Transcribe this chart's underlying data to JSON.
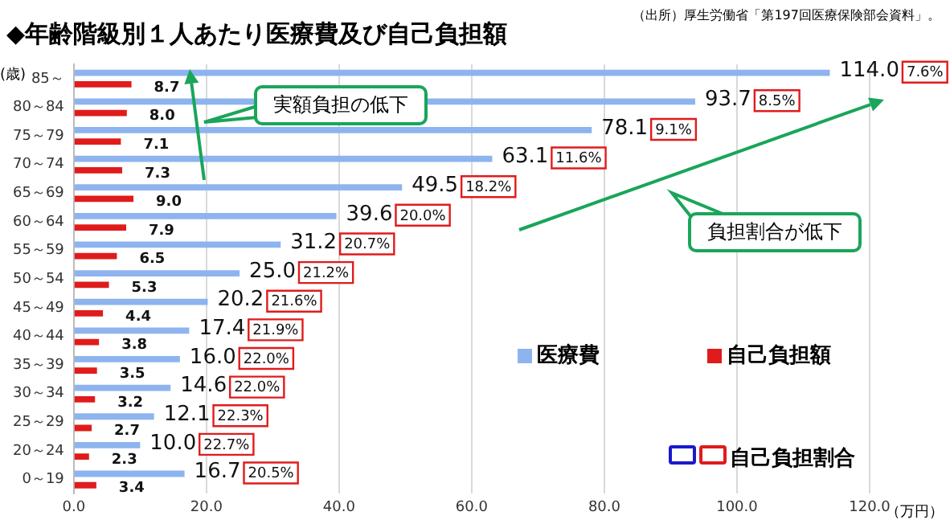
{
  "chart_data": {
    "type": "bar",
    "orientation": "horizontal",
    "title": "◆年齢階級別１人あたり医療費及び自己負担額",
    "ylabel": "(歳)",
    "xlabel": "（万円）",
    "categories": [
      "85～",
      "80～84",
      "75～79",
      "70～74",
      "65～69",
      "60～64",
      "55～59",
      "50～54",
      "45～49",
      "40～44",
      "35～39",
      "30～34",
      "25～29",
      "20～24",
      "0～19"
    ],
    "series": [
      {
        "name": "医療費",
        "color": "#8db4ee",
        "values": [
          114.0,
          93.7,
          78.1,
          63.1,
          49.5,
          39.6,
          31.2,
          25.0,
          20.2,
          17.4,
          16.0,
          14.6,
          12.1,
          10.0,
          16.7
        ],
        "value_labels": [
          "114.0",
          "93.7",
          "78.1",
          "63.1",
          "49.5",
          "39.6",
          "31.2",
          "25.0",
          "20.2",
          "17.4",
          "16.0",
          "14.6",
          "12.1",
          "10.0",
          "16.7"
        ]
      },
      {
        "name": "自己負担額",
        "color": "#e01b1b",
        "values": [
          8.7,
          8.0,
          7.1,
          7.3,
          9.0,
          7.9,
          6.5,
          5.3,
          4.4,
          3.8,
          3.5,
          3.2,
          2.7,
          2.3,
          3.4
        ],
        "value_labels": [
          "8.7",
          "8.0",
          "7.1",
          "7.3",
          "9.0",
          "7.9",
          "6.5",
          "5.3",
          "4.4",
          "3.8",
          "3.5",
          "3.2",
          "2.7",
          "2.3",
          "3.4"
        ]
      }
    ],
    "xlim": [
      0,
      120
    ],
    "xticks": [
      {
        "value": 0,
        "label": "0.0"
      },
      {
        "value": 20,
        "label": "20.0"
      },
      {
        "value": 40,
        "label": "40.0"
      },
      {
        "value": 60,
        "label": "60.0"
      },
      {
        "value": 80,
        "label": "80.0"
      },
      {
        "value": 100,
        "label": "100.0"
      },
      {
        "value": 120,
        "label": "120.0"
      }
    ],
    "grid": "x",
    "legend": "bottom right",
    "annotations": [
      "（出所）厚生労働省「第197回医療保険部会資料」。",
      "実額負担の低下",
      "負担割合が低下",
      "自己負担割合",
      "7.6%",
      "8.5%",
      "9.1%",
      "11.6%",
      "18.2%",
      "20.0%",
      "20.7%",
      "21.2%",
      "21.6%",
      "21.9%",
      "22.0%",
      "22.0%",
      "22.3%",
      "22.7%",
      "20.5%"
    ]
  }
}
